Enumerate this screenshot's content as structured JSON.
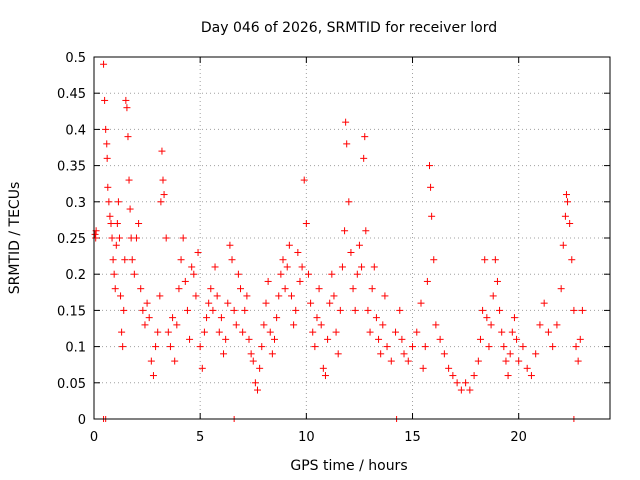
{
  "chart_data": {
    "type": "scatter",
    "title": "Day 046 of 2026, SRMTID for receiver lord",
    "xlabel": "GPS time / hours",
    "ylabel": "SRMTID / TECUs",
    "xlim": [
      0,
      24.3
    ],
    "ylim": [
      0,
      0.5
    ],
    "xticks": [
      0,
      5,
      10,
      15,
      20
    ],
    "xtick_labels": [
      "0",
      "5",
      "10",
      "15",
      "20"
    ],
    "yticks": [
      0,
      0.05,
      0.1,
      0.15,
      0.2,
      0.25,
      0.3,
      0.35,
      0.4,
      0.45,
      0.5
    ],
    "ytick_labels": [
      "0",
      "0.05",
      "0.1",
      "0.15",
      "0.2",
      "0.25",
      "0.3",
      "0.35",
      "0.4",
      "0.45",
      "0.5"
    ],
    "grid": true,
    "marker": "+",
    "series": [
      {
        "name": "SRMTID",
        "color": "#ff0000",
        "points": [
          [
            0.05,
            0.255
          ],
          [
            0.08,
            0.25
          ],
          [
            0.1,
            0.26
          ],
          [
            0.45,
            0.49
          ],
          [
            0.5,
            0.44
          ],
          [
            0.55,
            0.4
          ],
          [
            0.6,
            0.38
          ],
          [
            0.62,
            0.36
          ],
          [
            0.65,
            0.32
          ],
          [
            0.7,
            0.3
          ],
          [
            0.75,
            0.28
          ],
          [
            0.8,
            0.27
          ],
          [
            0.85,
            0.25
          ],
          [
            0.9,
            0.22
          ],
          [
            0.95,
            0.2
          ],
          [
            1.0,
            0.18
          ],
          [
            1.05,
            0.24
          ],
          [
            1.1,
            0.27
          ],
          [
            1.15,
            0.3
          ],
          [
            1.2,
            0.25
          ],
          [
            1.25,
            0.17
          ],
          [
            1.3,
            0.12
          ],
          [
            1.35,
            0.1
          ],
          [
            1.4,
            0.15
          ],
          [
            1.45,
            0.22
          ],
          [
            1.5,
            0.44
          ],
          [
            1.55,
            0.43
          ],
          [
            1.6,
            0.39
          ],
          [
            1.65,
            0.33
          ],
          [
            1.7,
            0.29
          ],
          [
            1.75,
            0.25
          ],
          [
            1.8,
            0.22
          ],
          [
            1.9,
            0.2
          ],
          [
            2.0,
            0.25
          ],
          [
            2.1,
            0.27
          ],
          [
            2.2,
            0.18
          ],
          [
            2.3,
            0.15
          ],
          [
            2.4,
            0.13
          ],
          [
            2.5,
            0.16
          ],
          [
            2.6,
            0.14
          ],
          [
            2.7,
            0.08
          ],
          [
            2.8,
            0.06
          ],
          [
            2.9,
            0.1
          ],
          [
            3.0,
            0.12
          ],
          [
            3.1,
            0.17
          ],
          [
            3.15,
            0.3
          ],
          [
            3.2,
            0.37
          ],
          [
            3.25,
            0.33
          ],
          [
            3.3,
            0.31
          ],
          [
            3.4,
            0.25
          ],
          [
            3.5,
            0.12
          ],
          [
            3.6,
            0.1
          ],
          [
            3.7,
            0.14
          ],
          [
            3.8,
            0.08
          ],
          [
            3.9,
            0.13
          ],
          [
            4.0,
            0.18
          ],
          [
            4.1,
            0.22
          ],
          [
            4.2,
            0.25
          ],
          [
            4.3,
            0.19
          ],
          [
            4.4,
            0.15
          ],
          [
            4.5,
            0.11
          ],
          [
            4.6,
            0.21
          ],
          [
            4.7,
            0.2
          ],
          [
            4.8,
            0.17
          ],
          [
            4.9,
            0.23
          ],
          [
            5.0,
            0.1
          ],
          [
            5.1,
            0.07
          ],
          [
            5.2,
            0.12
          ],
          [
            5.3,
            0.14
          ],
          [
            5.4,
            0.16
          ],
          [
            5.5,
            0.18
          ],
          [
            5.6,
            0.15
          ],
          [
            5.7,
            0.21
          ],
          [
            5.8,
            0.17
          ],
          [
            5.9,
            0.12
          ],
          [
            6.0,
            0.14
          ],
          [
            6.1,
            0.09
          ],
          [
            6.2,
            0.11
          ],
          [
            6.3,
            0.16
          ],
          [
            6.4,
            0.24
          ],
          [
            6.5,
            0.22
          ],
          [
            6.6,
            0.15
          ],
          [
            6.7,
            0.13
          ],
          [
            6.8,
            0.2
          ],
          [
            6.9,
            0.18
          ],
          [
            7.0,
            0.12
          ],
          [
            7.1,
            0.15
          ],
          [
            7.2,
            0.17
          ],
          [
            7.3,
            0.11
          ],
          [
            7.4,
            0.09
          ],
          [
            7.5,
            0.08
          ],
          [
            7.6,
            0.05
          ],
          [
            7.7,
            0.04
          ],
          [
            7.8,
            0.07
          ],
          [
            7.9,
            0.1
          ],
          [
            8.0,
            0.13
          ],
          [
            8.1,
            0.16
          ],
          [
            8.2,
            0.19
          ],
          [
            8.3,
            0.12
          ],
          [
            8.4,
            0.09
          ],
          [
            8.5,
            0.11
          ],
          [
            8.6,
            0.14
          ],
          [
            8.7,
            0.17
          ],
          [
            8.8,
            0.2
          ],
          [
            8.9,
            0.22
          ],
          [
            9.0,
            0.18
          ],
          [
            9.1,
            0.21
          ],
          [
            9.2,
            0.24
          ],
          [
            9.3,
            0.17
          ],
          [
            9.4,
            0.13
          ],
          [
            9.5,
            0.15
          ],
          [
            9.6,
            0.23
          ],
          [
            9.7,
            0.19
          ],
          [
            9.8,
            0.21
          ],
          [
            9.9,
            0.33
          ],
          [
            10.0,
            0.27
          ],
          [
            10.1,
            0.2
          ],
          [
            10.2,
            0.16
          ],
          [
            10.3,
            0.12
          ],
          [
            10.4,
            0.1
          ],
          [
            10.5,
            0.14
          ],
          [
            10.6,
            0.18
          ],
          [
            10.7,
            0.13
          ],
          [
            10.8,
            0.07
          ],
          [
            10.9,
            0.06
          ],
          [
            11.0,
            0.11
          ],
          [
            11.1,
            0.16
          ],
          [
            11.2,
            0.2
          ],
          [
            11.3,
            0.17
          ],
          [
            11.4,
            0.12
          ],
          [
            11.5,
            0.09
          ],
          [
            11.6,
            0.15
          ],
          [
            11.7,
            0.21
          ],
          [
            11.8,
            0.26
          ],
          [
            11.85,
            0.41
          ],
          [
            11.9,
            0.38
          ],
          [
            12.0,
            0.3
          ],
          [
            12.1,
            0.23
          ],
          [
            12.2,
            0.18
          ],
          [
            12.3,
            0.15
          ],
          [
            12.4,
            0.2
          ],
          [
            12.5,
            0.24
          ],
          [
            12.6,
            0.21
          ],
          [
            12.7,
            0.36
          ],
          [
            12.75,
            0.39
          ],
          [
            12.8,
            0.26
          ],
          [
            12.9,
            0.15
          ],
          [
            13.0,
            0.12
          ],
          [
            13.1,
            0.18
          ],
          [
            13.2,
            0.21
          ],
          [
            13.3,
            0.14
          ],
          [
            13.4,
            0.11
          ],
          [
            13.5,
            0.09
          ],
          [
            13.6,
            0.13
          ],
          [
            13.7,
            0.17
          ],
          [
            13.8,
            0.1
          ],
          [
            14.0,
            0.08
          ],
          [
            14.2,
            0.12
          ],
          [
            14.4,
            0.15
          ],
          [
            14.5,
            0.11
          ],
          [
            14.6,
            0.09
          ],
          [
            14.8,
            0.08
          ],
          [
            15.0,
            0.1
          ],
          [
            15.2,
            0.12
          ],
          [
            15.4,
            0.16
          ],
          [
            15.5,
            0.07
          ],
          [
            15.6,
            0.1
          ],
          [
            15.7,
            0.19
          ],
          [
            15.8,
            0.35
          ],
          [
            15.85,
            0.32
          ],
          [
            15.9,
            0.28
          ],
          [
            16.0,
            0.22
          ],
          [
            16.1,
            0.13
          ],
          [
            16.3,
            0.11
          ],
          [
            16.5,
            0.09
          ],
          [
            16.7,
            0.07
          ],
          [
            16.9,
            0.06
          ],
          [
            17.1,
            0.05
          ],
          [
            17.3,
            0.04
          ],
          [
            17.5,
            0.05
          ],
          [
            17.7,
            0.04
          ],
          [
            17.9,
            0.06
          ],
          [
            18.1,
            0.08
          ],
          [
            18.2,
            0.11
          ],
          [
            18.3,
            0.15
          ],
          [
            18.4,
            0.22
          ],
          [
            18.5,
            0.14
          ],
          [
            18.6,
            0.1
          ],
          [
            18.7,
            0.13
          ],
          [
            18.8,
            0.17
          ],
          [
            18.9,
            0.22
          ],
          [
            19.0,
            0.19
          ],
          [
            19.1,
            0.15
          ],
          [
            19.2,
            0.12
          ],
          [
            19.3,
            0.1
          ],
          [
            19.4,
            0.08
          ],
          [
            19.5,
            0.06
          ],
          [
            19.6,
            0.09
          ],
          [
            19.7,
            0.12
          ],
          [
            19.8,
            0.14
          ],
          [
            19.9,
            0.11
          ],
          [
            20.0,
            0.08
          ],
          [
            20.2,
            0.1
          ],
          [
            20.4,
            0.07
          ],
          [
            20.6,
            0.06
          ],
          [
            20.8,
            0.09
          ],
          [
            21.0,
            0.13
          ],
          [
            21.2,
            0.16
          ],
          [
            21.4,
            0.12
          ],
          [
            21.6,
            0.1
          ],
          [
            21.8,
            0.13
          ],
          [
            22.0,
            0.18
          ],
          [
            22.1,
            0.24
          ],
          [
            22.2,
            0.28
          ],
          [
            22.25,
            0.31
          ],
          [
            22.3,
            0.3
          ],
          [
            22.4,
            0.27
          ],
          [
            22.5,
            0.22
          ],
          [
            22.6,
            0.15
          ],
          [
            22.7,
            0.1
          ],
          [
            22.8,
            0.08
          ],
          [
            22.9,
            0.11
          ],
          [
            23.0,
            0.15
          ]
        ]
      }
    ],
    "baseline_markers": [
      0.45,
      0.55,
      6.6,
      14.25,
      22.6
    ]
  }
}
